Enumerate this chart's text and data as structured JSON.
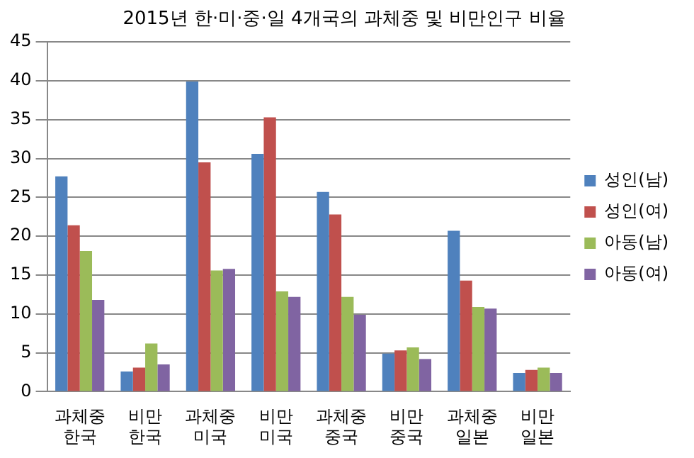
{
  "chart_data": {
    "type": "bar",
    "title": "2015년 한·미·중·일 4개국의 과체중 및 비만인구 비율",
    "categories": [
      "과체중\n한국",
      "비만\n한국",
      "과체중\n미국",
      "비만\n미국",
      "과체중\n중국",
      "비만\n중국",
      "과체중\n일본",
      "비만\n일본"
    ],
    "series": [
      {
        "name": "성인(남)",
        "color": "#4f81bd",
        "values": [
          27.7,
          2.6,
          39.9,
          30.6,
          25.7,
          4.9,
          20.7,
          2.4
        ]
      },
      {
        "name": "성인(여)",
        "color": "#c0504d",
        "values": [
          21.4,
          3.1,
          29.5,
          35.3,
          22.8,
          5.3,
          14.3,
          2.8
        ]
      },
      {
        "name": "아동(남)",
        "color": "#9bbb59",
        "values": [
          18.1,
          6.2,
          15.6,
          12.9,
          12.2,
          5.7,
          10.9,
          3.1
        ]
      },
      {
        "name": "아동(여)",
        "color": "#8064a2",
        "values": [
          11.8,
          3.5,
          15.8,
          12.2,
          9.9,
          4.2,
          10.7,
          2.4
        ]
      }
    ],
    "ylim": [
      0,
      45
    ],
    "yticks": [
      0,
      5,
      10,
      15,
      20,
      25,
      30,
      35,
      40,
      45
    ],
    "grid": "y",
    "legend": "right"
  }
}
